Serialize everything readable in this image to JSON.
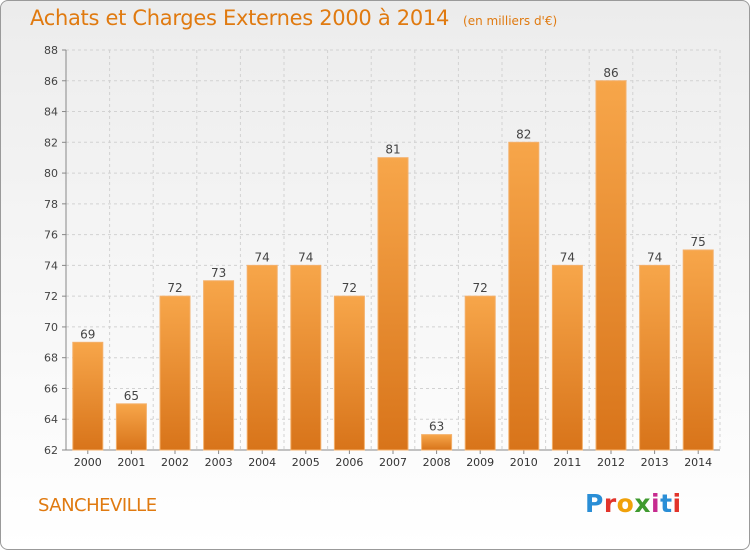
{
  "title": "Achats et Charges Externes 2000 à 2014",
  "subtitle": "(en milliers d'€)",
  "commune": "SANCHEVILLE",
  "logo": {
    "letters": [
      "P",
      "r",
      "o",
      "x",
      "i",
      "t",
      "i"
    ]
  },
  "colors": {
    "accent": "#e07a10",
    "bar_light": "#f7a64a",
    "bar_dark": "#d8761a"
  },
  "chart_data": {
    "type": "bar",
    "title": "Achats et Charges Externes 2000 à 2014",
    "subtitle": "(en milliers d'€)",
    "categories": [
      "2000",
      "2001",
      "2002",
      "2003",
      "2004",
      "2005",
      "2006",
      "2007",
      "2008",
      "2009",
      "2010",
      "2011",
      "2012",
      "2013",
      "2014"
    ],
    "values": [
      69,
      65,
      72,
      73,
      74,
      74,
      72,
      81,
      63,
      72,
      82,
      74,
      86,
      74,
      75
    ],
    "ylim": [
      62,
      88
    ],
    "yticks": [
      62,
      64,
      66,
      68,
      70,
      72,
      74,
      76,
      78,
      80,
      82,
      84,
      86,
      88
    ],
    "grid": true,
    "data_labels": true,
    "legend": "none"
  }
}
